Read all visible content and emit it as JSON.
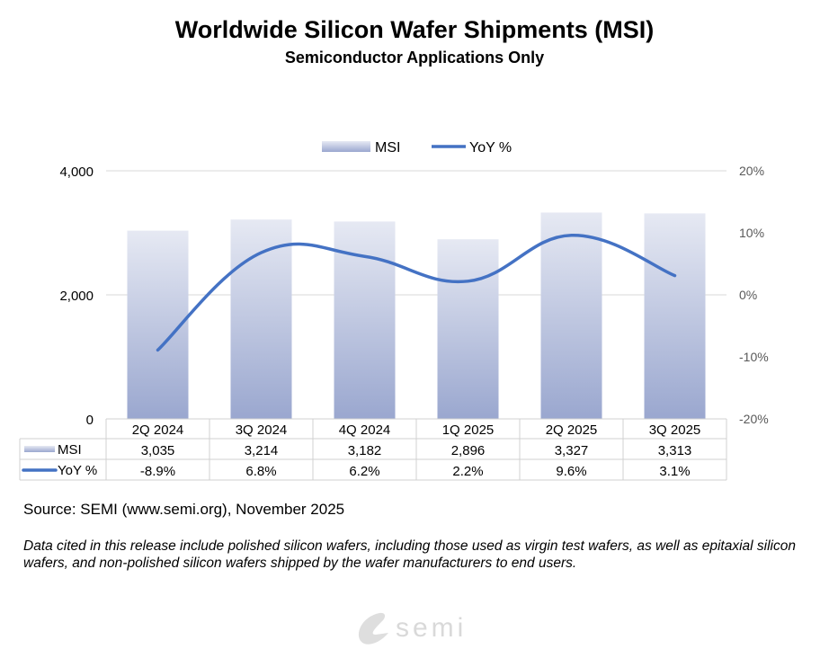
{
  "chart_data": {
    "type": "bar+line",
    "title": "Worldwide Silicon Wafer Shipments (MSI)",
    "subtitle": "Semiconductor Applications Only",
    "categories": [
      "2Q 2024",
      "3Q 2024",
      "4Q 2024",
      "1Q 2025",
      "2Q 2025",
      "3Q 2025"
    ],
    "series": [
      {
        "name": "MSI",
        "type": "bar",
        "axis": "left",
        "values": [
          3035,
          3214,
          3182,
          2896,
          3327,
          3313
        ],
        "labels": [
          "3,035",
          "3,214",
          "3,182",
          "2,896",
          "3,327",
          "3,313"
        ],
        "color": "#9aa7cf"
      },
      {
        "name": "YoY %",
        "type": "line",
        "axis": "right",
        "values": [
          -8.9,
          6.8,
          6.2,
          2.2,
          9.6,
          3.1
        ],
        "labels": [
          "-8.9%",
          "6.8%",
          "6.2%",
          "2.2%",
          "9.6%",
          "3.1%"
        ],
        "color": "#4472c4"
      }
    ],
    "left_axis": {
      "range": [
        0,
        4000
      ],
      "ticks": [
        "0",
        "2,000",
        "4,000"
      ]
    },
    "right_axis": {
      "range": [
        -20,
        20
      ],
      "ticks": [
        "-20%",
        "-10%",
        "0%",
        "10%",
        "20%"
      ]
    },
    "legend": "top",
    "grid": true,
    "data_table": true
  },
  "source": "Source: SEMI (www.semi.org), November 2025",
  "note": "Data cited in this release include polished silicon wafers, including those used as virgin test wafers, as well as epitaxial silicon wafers, and non-polished silicon wafers shipped by the wafer manufacturers to end users.",
  "logo": {
    "text": "semi",
    "color": "#d9d9d9"
  }
}
